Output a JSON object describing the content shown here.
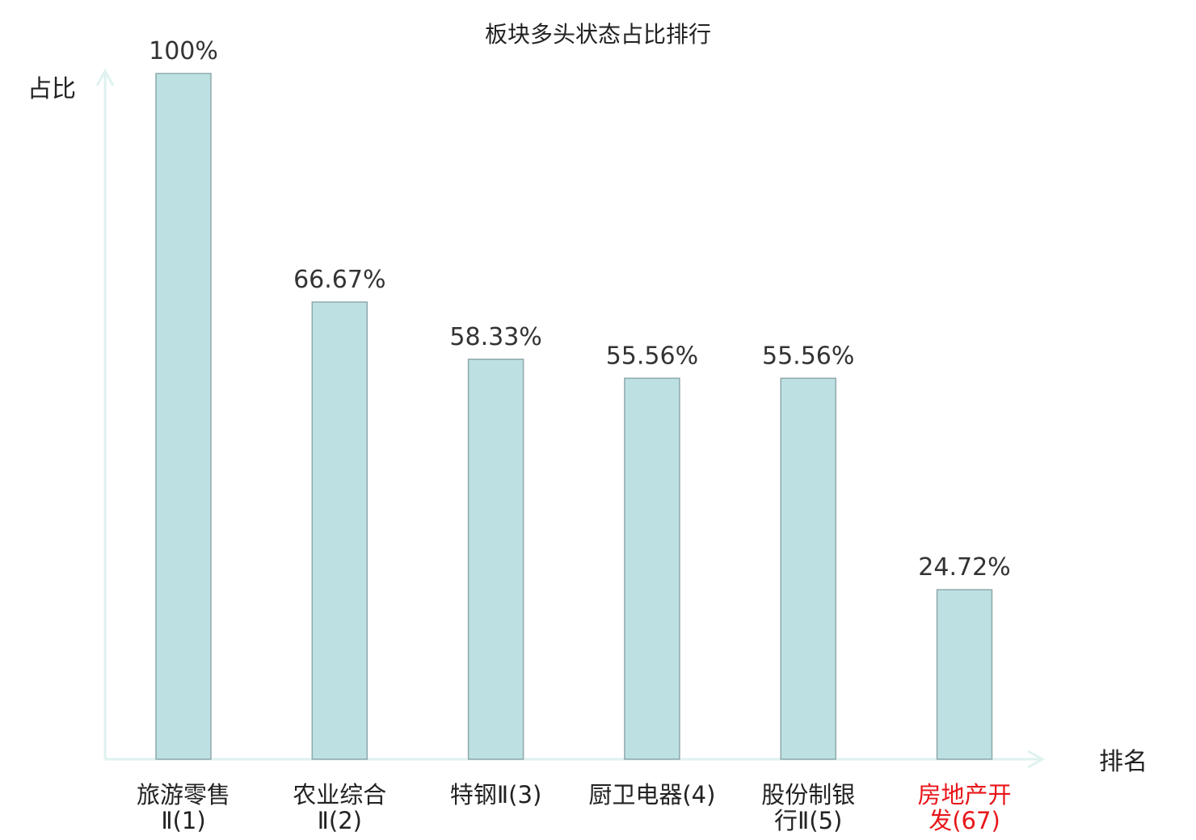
{
  "chart_data": {
    "type": "bar",
    "title": "板块多头状态占比排行",
    "ylabel": "占比",
    "xlabel": "排名",
    "categories": [
      [
        "旅游零售",
        "Ⅱ(1)"
      ],
      [
        "农业综合",
        "Ⅱ(2)"
      ],
      [
        "特钢Ⅱ(3)"
      ],
      [
        "厨卫电器(4)"
      ],
      [
        "股份制银",
        "行Ⅱ(5)"
      ],
      [
        "房地产开",
        "发(67)"
      ]
    ],
    "values": [
      100,
      66.67,
      58.33,
      55.56,
      55.56,
      24.72
    ],
    "data_labels": [
      "100%",
      "66.67%",
      "58.33%",
      "55.56%",
      "55.56%",
      "24.72%"
    ],
    "highlight_index": 5,
    "ylim": [
      0,
      100
    ],
    "grid": false,
    "legend": "none",
    "colors": {
      "bar_fill": "#bde0e3",
      "bar_stroke": "#8fa9ab",
      "axis": "#dff2ef",
      "tick_label": "#222222",
      "highlight": "#e8161a"
    }
  }
}
